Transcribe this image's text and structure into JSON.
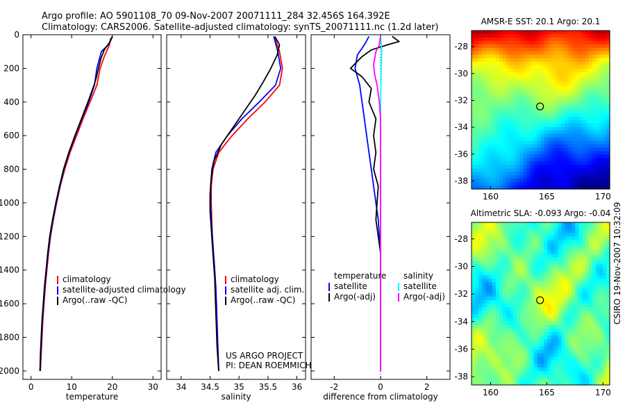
{
  "header": {
    "line1": "Argo profile: AO 5901108_70 09-Nov-2007 20071111_284 32.456S 164.392E",
    "line2": "Climatology: CARS2006. Satellite-adjusted climatology: synTS_20071111.nc (1.2d later)"
  },
  "side_label": "CSIRO 19-Nov-2007 10:32:09",
  "colors": {
    "climatology": "#ff0000",
    "satellite": "#0000ff",
    "argo": "#000000",
    "salinity_sat": "#00ffff",
    "salinity_argo": "#ff00ff"
  },
  "chart_data": [
    {
      "type": "line",
      "xlabel": "temperature",
      "xlim": [
        -2,
        32
      ],
      "ylim": [
        2050,
        0
      ],
      "xticks": [
        0,
        10,
        20,
        30
      ],
      "yticks": [
        0,
        200,
        400,
        600,
        800,
        1000,
        1200,
        1400,
        1600,
        1800,
        2000
      ],
      "legend": [
        "climatology",
        "satellite-adjusted climatology",
        "Argo(..raw -QC)"
      ],
      "legend_position": "bottom-center",
      "series": [
        {
          "name": "climatology",
          "color": "#ff0000",
          "points": [
            [
              19.6,
              20
            ],
            [
              19.3,
              60
            ],
            [
              18.0,
              130
            ],
            [
              17.0,
              200
            ],
            [
              16.2,
              300
            ],
            [
              14.5,
              400
            ],
            [
              12.8,
              500
            ],
            [
              11.2,
              600
            ],
            [
              9.6,
              700
            ],
            [
              8.3,
              800
            ],
            [
              7.2,
              900
            ],
            [
              6.3,
              1000
            ],
            [
              5.5,
              1100
            ],
            [
              4.8,
              1200
            ],
            [
              4.3,
              1300
            ],
            [
              3.9,
              1400
            ],
            [
              3.5,
              1500
            ],
            [
              3.2,
              1600
            ],
            [
              2.9,
              1700
            ],
            [
              2.7,
              1800
            ],
            [
              2.5,
              1900
            ],
            [
              2.3,
              2000
            ]
          ]
        },
        {
          "name": "satellite-adjusted climatology",
          "color": "#0000ff",
          "points": [
            [
              20.0,
              10
            ],
            [
              19.0,
              60
            ],
            [
              17.3,
              100
            ],
            [
              16.2,
              200
            ],
            [
              15.6,
              300
            ],
            [
              14.2,
              400
            ],
            [
              12.5,
              500
            ],
            [
              10.9,
              600
            ],
            [
              9.4,
              700
            ],
            [
              8.1,
              800
            ],
            [
              7.1,
              900
            ],
            [
              6.2,
              1000
            ],
            [
              5.4,
              1100
            ],
            [
              4.7,
              1200
            ],
            [
              4.2,
              1300
            ],
            [
              3.8,
              1400
            ],
            [
              3.4,
              1500
            ],
            [
              3.1,
              1600
            ],
            [
              2.8,
              1700
            ],
            [
              2.6,
              1800
            ],
            [
              2.4,
              1900
            ],
            [
              2.2,
              2000
            ]
          ]
        },
        {
          "name": "Argo(..raw -QC)",
          "color": "#000000",
          "points": [
            [
              20.0,
              10
            ],
            [
              19.5,
              40
            ],
            [
              18.0,
              90
            ],
            [
              17.2,
              140
            ],
            [
              16.6,
              200
            ],
            [
              16.0,
              260
            ],
            [
              15.5,
              300
            ],
            [
              14.0,
              400
            ],
            [
              12.4,
              500
            ],
            [
              10.8,
              600
            ],
            [
              9.3,
              700
            ],
            [
              8.0,
              800
            ],
            [
              7.0,
              900
            ],
            [
              6.1,
              1000
            ],
            [
              5.3,
              1100
            ],
            [
              4.6,
              1200
            ],
            [
              4.1,
              1300
            ],
            [
              3.7,
              1400
            ],
            [
              3.3,
              1500
            ],
            [
              3.0,
              1600
            ],
            [
              2.7,
              1700
            ],
            [
              2.5,
              1800
            ],
            [
              2.3,
              1900
            ],
            [
              2.2,
              2000
            ]
          ]
        }
      ]
    },
    {
      "type": "line",
      "xlabel": "salinity",
      "xlim": [
        33.75,
        36.15
      ],
      "ylim": [
        2050,
        0
      ],
      "xticks": [
        34,
        34.5,
        35,
        35.5,
        36
      ],
      "yticks": [
        0,
        200,
        400,
        600,
        800,
        1000,
        1200,
        1400,
        1600,
        1800,
        2000
      ],
      "legend": [
        "climatology",
        "satellite adj. clim.",
        "Argo(..raw -QC)"
      ],
      "legend_position": "bottom-center",
      "annotation": [
        "US ARGO PROJECT",
        "PI: DEAN ROEMMICH"
      ],
      "series": [
        {
          "name": "climatology",
          "color": "#ff0000",
          "points": [
            [
              35.62,
              20
            ],
            [
              35.7,
              100
            ],
            [
              35.75,
              200
            ],
            [
              35.7,
              300
            ],
            [
              35.45,
              400
            ],
            [
              35.15,
              500
            ],
            [
              34.88,
              600
            ],
            [
              34.65,
              700
            ],
            [
              34.55,
              800
            ],
            [
              34.52,
              900
            ],
            [
              34.52,
              1000
            ],
            [
              34.53,
              1100
            ],
            [
              34.54,
              1200
            ],
            [
              34.56,
              1300
            ],
            [
              34.58,
              1400
            ],
            [
              34.59,
              1500
            ],
            [
              34.6,
              1600
            ],
            [
              34.61,
              1700
            ],
            [
              34.62,
              1800
            ],
            [
              34.63,
              1900
            ],
            [
              34.65,
              2000
            ]
          ]
        },
        {
          "name": "satellite adj. clim.",
          "color": "#0000ff",
          "points": [
            [
              35.6,
              10
            ],
            [
              35.67,
              100
            ],
            [
              35.72,
              200
            ],
            [
              35.63,
              300
            ],
            [
              35.35,
              400
            ],
            [
              35.05,
              500
            ],
            [
              34.8,
              600
            ],
            [
              34.6,
              700
            ],
            [
              34.53,
              800
            ],
            [
              34.51,
              900
            ],
            [
              34.51,
              1000
            ],
            [
              34.52,
              1100
            ],
            [
              34.54,
              1200
            ],
            [
              34.56,
              1300
            ],
            [
              34.58,
              1400
            ],
            [
              34.6,
              1500
            ],
            [
              34.61,
              1600
            ],
            [
              34.62,
              1700
            ],
            [
              34.63,
              1800
            ],
            [
              34.64,
              1900
            ],
            [
              34.65,
              2000
            ]
          ]
        },
        {
          "name": "Argo(..raw -QC)",
          "color": "#000000",
          "points": [
            [
              35.62,
              10
            ],
            [
              35.7,
              60
            ],
            [
              35.66,
              120
            ],
            [
              35.55,
              200
            ],
            [
              35.42,
              280
            ],
            [
              35.28,
              360
            ],
            [
              35.1,
              450
            ],
            [
              34.9,
              550
            ],
            [
              34.7,
              650
            ],
            [
              34.57,
              750
            ],
            [
              34.52,
              850
            ],
            [
              34.5,
              950
            ],
            [
              34.5,
              1050
            ],
            [
              34.52,
              1150
            ],
            [
              34.54,
              1250
            ],
            [
              34.56,
              1350
            ],
            [
              34.58,
              1450
            ],
            [
              34.59,
              1550
            ],
            [
              34.6,
              1650
            ],
            [
              34.61,
              1750
            ],
            [
              34.62,
              1850
            ],
            [
              34.64,
              1950
            ],
            [
              34.65,
              2000
            ]
          ]
        }
      ]
    },
    {
      "type": "line",
      "xlabel": "difference from climatology",
      "xlim": [
        -3,
        3
      ],
      "ylim": [
        2050,
        0
      ],
      "xticks": [
        -2,
        0,
        2
      ],
      "yticks": [
        0,
        200,
        400,
        600,
        800,
        1000,
        1200,
        1400,
        1600,
        1800,
        2000
      ],
      "legend": [
        "temperature",
        "satellite",
        "Argo(-adj)",
        "salinity",
        "satellite",
        "Argo(-adj)"
      ],
      "legend_position": "bottom-center",
      "series": [
        {
          "name": "temperature satellite",
          "color": "#0000ff",
          "points": [
            [
              -0.5,
              10
            ],
            [
              -0.7,
              60
            ],
            [
              -1.0,
              120
            ],
            [
              -1.1,
              200
            ],
            [
              -0.9,
              300
            ],
            [
              -0.8,
              400
            ],
            [
              -0.7,
              500
            ],
            [
              -0.6,
              600
            ],
            [
              -0.5,
              700
            ],
            [
              -0.4,
              800
            ],
            [
              -0.3,
              900
            ],
            [
              -0.2,
              1000
            ],
            [
              -0.1,
              1100
            ],
            [
              -0.05,
              1200
            ],
            [
              0,
              1300
            ],
            [
              0,
              1500
            ],
            [
              0,
              2000
            ]
          ]
        },
        {
          "name": "temperature Argo(-adj)",
          "color": "#000000",
          "points": [
            [
              0.5,
              10
            ],
            [
              0.8,
              40
            ],
            [
              0.3,
              60
            ],
            [
              -0.4,
              90
            ],
            [
              -0.8,
              130
            ],
            [
              -1.3,
              200
            ],
            [
              -0.8,
              250
            ],
            [
              -0.4,
              320
            ],
            [
              -0.5,
              400
            ],
            [
              -0.2,
              500
            ],
            [
              -0.3,
              600
            ],
            [
              -0.2,
              700
            ],
            [
              -0.3,
              800
            ],
            [
              -0.1,
              900
            ],
            [
              -0.15,
              1000
            ],
            [
              -0.2,
              1100
            ],
            [
              -0.1,
              1200
            ],
            [
              0,
              1300
            ],
            [
              0,
              2000
            ]
          ]
        },
        {
          "name": "salinity satellite",
          "color": "#00ffff",
          "points": [
            [
              0,
              10
            ],
            [
              0.05,
              100
            ],
            [
              0.03,
              200
            ],
            [
              0,
              400
            ],
            [
              0,
              2000
            ]
          ]
        },
        {
          "name": "salinity Argo(-adj)",
          "color": "#ff00ff",
          "points": [
            [
              0,
              10
            ],
            [
              -0.05,
              60
            ],
            [
              -0.2,
              100
            ],
            [
              -0.3,
              180
            ],
            [
              -0.25,
              240
            ],
            [
              -0.15,
              300
            ],
            [
              -0.05,
              400
            ],
            [
              0,
              500
            ],
            [
              0,
              2000
            ]
          ]
        }
      ]
    },
    {
      "type": "heatmap",
      "title": "AMSR-E SST: 20.1   Argo: 20.1",
      "xlim": [
        158.3,
        170.6
      ],
      "ylim": [
        -38.6,
        -26.8
      ],
      "xticks": [
        160,
        165,
        170
      ],
      "yticks": [
        -28,
        -30,
        -32,
        -34,
        -36,
        -38
      ],
      "marker": [
        164.4,
        -32.45
      ]
    },
    {
      "type": "heatmap",
      "title": "Altimetric SLA: -0.093   Argo: -0.04",
      "xlim": [
        158.3,
        170.6
      ],
      "ylim": [
        -38.6,
        -26.8
      ],
      "xticks": [
        160,
        165,
        170
      ],
      "yticks": [
        -28,
        -30,
        -32,
        -34,
        -36,
        -38
      ],
      "marker": [
        164.4,
        -32.45
      ]
    }
  ]
}
